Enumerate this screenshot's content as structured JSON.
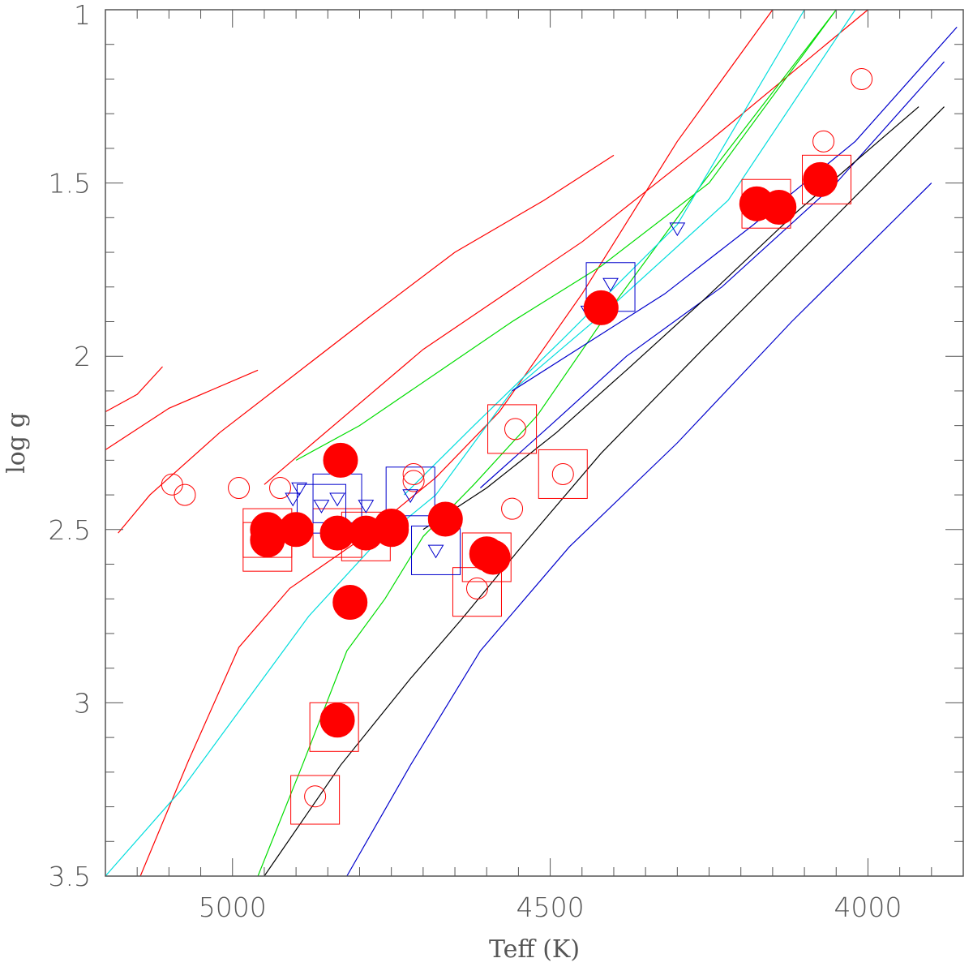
{
  "chart_data": {
    "type": "scatter",
    "title": "",
    "xlabel": "Teff (K)",
    "ylabel": "log g",
    "xlim": [
      5200,
      3850
    ],
    "ylim": [
      3.5,
      1.0
    ],
    "x_ticks": [
      5000,
      4500,
      4000
    ],
    "x_tick_labels": [
      "5000",
      "4500",
      "4000"
    ],
    "y_ticks": [
      1.0,
      1.5,
      2.0,
      2.5,
      3.0,
      3.5
    ],
    "y_tick_labels": [
      "1",
      "1.5",
      "2",
      "2.5",
      "3",
      "3.5"
    ],
    "colors": {
      "red": "#ff0000",
      "green": "#00dd00",
      "cyan": "#00dddd",
      "blue": "#0000cc",
      "black": "#000000",
      "axis": "#555555"
    },
    "tracks": [
      {
        "color": "red",
        "points": [
          [
            4950,
            2.37
          ],
          [
            4700,
            1.98
          ],
          [
            4450,
            1.67
          ],
          [
            4250,
            1.38
          ],
          [
            4000,
            1.0
          ]
        ]
      },
      {
        "color": "red",
        "points": [
          [
            5180,
            2.51
          ],
          [
            5130,
            2.4
          ],
          [
            5020,
            2.22
          ],
          [
            4900,
            2.05
          ],
          [
            4780,
            1.88
          ],
          [
            4650,
            1.7
          ],
          [
            4510,
            1.55
          ],
          [
            4400,
            1.42
          ]
        ]
      },
      {
        "color": "red",
        "points": [
          [
            5200,
            2.27
          ],
          [
            5100,
            2.15
          ],
          [
            4960,
            2.04
          ]
        ]
      },
      {
        "color": "red",
        "points": [
          [
            5200,
            2.16
          ],
          [
            5150,
            2.11
          ],
          [
            5110,
            2.03
          ]
        ]
      },
      {
        "color": "red",
        "points": [
          [
            5145,
            3.5
          ],
          [
            5070,
            3.17
          ],
          [
            4990,
            2.84
          ],
          [
            4910,
            2.67
          ],
          [
            4800,
            2.53
          ],
          [
            4680,
            2.35
          ],
          [
            4580,
            2.16
          ],
          [
            4450,
            1.82
          ],
          [
            4300,
            1.38
          ],
          [
            4150,
            1.0
          ]
        ]
      },
      {
        "color": "green",
        "points": [
          [
            4960,
            3.5
          ],
          [
            4890,
            3.18
          ],
          [
            4820,
            2.85
          ],
          [
            4760,
            2.7
          ],
          [
            4700,
            2.52
          ],
          [
            4620,
            2.37
          ],
          [
            4520,
            2.17
          ],
          [
            4400,
            1.85
          ],
          [
            4260,
            1.5
          ],
          [
            4050,
            1.0
          ]
        ]
      },
      {
        "color": "green",
        "points": [
          [
            4900,
            2.3
          ],
          [
            4800,
            2.2
          ],
          [
            4680,
            2.05
          ],
          [
            4560,
            1.9
          ],
          [
            4420,
            1.74
          ],
          [
            4250,
            1.5
          ],
          [
            4050,
            1.0
          ]
        ]
      },
      {
        "color": "cyan",
        "points": [
          [
            5200,
            3.5
          ],
          [
            5080,
            3.25
          ],
          [
            4980,
            3.0
          ],
          [
            4880,
            2.75
          ],
          [
            4780,
            2.55
          ],
          [
            4680,
            2.4
          ],
          [
            4560,
            2.1
          ],
          [
            4400,
            1.85
          ],
          [
            4220,
            1.55
          ],
          [
            4020,
            1.0
          ]
        ]
      },
      {
        "color": "cyan",
        "points": [
          [
            4730,
            2.4
          ],
          [
            4620,
            2.2
          ],
          [
            4480,
            1.95
          ],
          [
            4300,
            1.62
          ],
          [
            4100,
            1.0
          ]
        ]
      },
      {
        "color": "blue",
        "points": [
          [
            4610,
            2.38
          ],
          [
            4500,
            2.2
          ],
          [
            4380,
            2.0
          ],
          [
            4230,
            1.8
          ],
          [
            4050,
            1.5
          ],
          [
            3880,
            1.15
          ]
        ]
      },
      {
        "color": "blue",
        "points": [
          [
            4820,
            3.5
          ],
          [
            4720,
            3.18
          ],
          [
            4610,
            2.85
          ],
          [
            4470,
            2.55
          ],
          [
            4300,
            2.25
          ],
          [
            4120,
            1.9
          ],
          [
            3900,
            1.5
          ]
        ]
      },
      {
        "color": "blue",
        "points": [
          [
            4560,
            2.1
          ],
          [
            4440,
            1.96
          ],
          [
            4320,
            1.82
          ],
          [
            4180,
            1.62
          ],
          [
            4020,
            1.38
          ],
          [
            3860,
            1.05
          ]
        ]
      },
      {
        "color": "black",
        "points": [
          [
            4950,
            3.5
          ],
          [
            4830,
            3.18
          ],
          [
            4720,
            2.93
          ],
          [
            4640,
            2.76
          ],
          [
            4550,
            2.56
          ],
          [
            4420,
            2.28
          ],
          [
            4260,
            1.98
          ],
          [
            4080,
            1.65
          ],
          [
            3880,
            1.28
          ]
        ]
      },
      {
        "color": "black",
        "points": [
          [
            4700,
            2.5
          ],
          [
            4600,
            2.38
          ],
          [
            4490,
            2.22
          ],
          [
            4380,
            2.04
          ],
          [
            4260,
            1.84
          ],
          [
            4110,
            1.58
          ],
          [
            3920,
            1.28
          ]
        ]
      }
    ],
    "series": [
      {
        "name": "filled-circles",
        "marker": "filled-circle",
        "color": "red",
        "points": [
          [
            4945,
            2.5
          ],
          [
            4945,
            2.53
          ],
          [
            4900,
            2.5
          ],
          [
            4830,
            2.3
          ],
          [
            4835,
            2.51
          ],
          [
            4790,
            2.51
          ],
          [
            4750,
            2.49
          ],
          [
            4750,
            2.5
          ],
          [
            4665,
            2.47
          ],
          [
            4590,
            2.58
          ],
          [
            4600,
            2.57
          ],
          [
            4815,
            2.71
          ],
          [
            4835,
            3.05
          ],
          [
            4420,
            1.86
          ],
          [
            4175,
            1.56
          ],
          [
            4140,
            1.57
          ],
          [
            4075,
            1.49
          ]
        ]
      },
      {
        "name": "open-squares-red",
        "marker": "open-square",
        "color": "red",
        "points": [
          [
            4945,
            2.51
          ],
          [
            4945,
            2.55
          ],
          [
            4835,
            2.51
          ],
          [
            4790,
            2.52
          ],
          [
            4600,
            2.58
          ],
          [
            4615,
            2.68
          ],
          [
            4840,
            3.07
          ],
          [
            4870,
            3.28
          ],
          [
            4560,
            2.21
          ],
          [
            4480,
            2.34
          ],
          [
            4160,
            1.56
          ],
          [
            4065,
            1.49
          ]
        ]
      },
      {
        "name": "open-circles-red",
        "marker": "open-circle",
        "color": "red",
        "points": [
          [
            4715,
            2.34
          ],
          [
            4715,
            2.36
          ],
          [
            4555,
            2.21
          ],
          [
            4480,
            2.34
          ],
          [
            4560,
            2.44
          ],
          [
            4615,
            2.67
          ],
          [
            4870,
            3.27
          ],
          [
            4070,
            1.38
          ],
          [
            4010,
            1.2
          ],
          [
            5095,
            2.37
          ],
          [
            5075,
            2.4
          ],
          [
            4990,
            2.38
          ],
          [
            4925,
            2.38
          ]
        ]
      },
      {
        "name": "open-triangles-blue",
        "marker": "open-triangle-down",
        "color": "blue",
        "points": [
          [
            4895,
            2.38
          ],
          [
            4905,
            2.41
          ],
          [
            4860,
            2.43
          ],
          [
            4835,
            2.41
          ],
          [
            4790,
            2.43
          ],
          [
            4720,
            2.4
          ],
          [
            4680,
            2.56
          ],
          [
            4440,
            1.87
          ],
          [
            4405,
            1.79
          ],
          [
            4300,
            1.63
          ]
        ]
      },
      {
        "name": "open-squares-blue",
        "marker": "open-square",
        "color": "blue",
        "points": [
          [
            4860,
            2.44
          ],
          [
            4835,
            2.41
          ],
          [
            4720,
            2.39
          ],
          [
            4680,
            2.56
          ],
          [
            4405,
            1.8
          ]
        ]
      }
    ]
  }
}
